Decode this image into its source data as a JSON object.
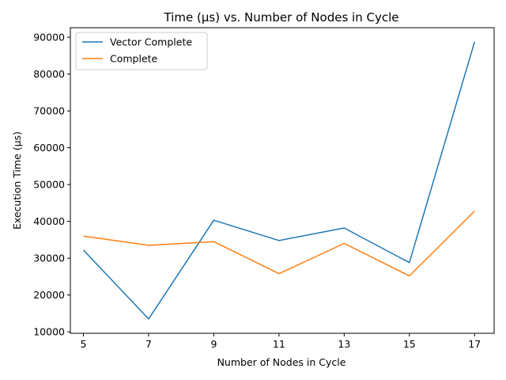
{
  "chart_data": {
    "type": "line",
    "title": "Time (µs) vs. Number of Nodes in Cycle",
    "xlabel": "Number of Nodes in Cycle",
    "ylabel": "Execution Time (µs)",
    "x": [
      5,
      7,
      9,
      11,
      13,
      15,
      17
    ],
    "xticks": [
      "5",
      "7",
      "9",
      "11",
      "13",
      "15",
      "17"
    ],
    "yticks": [
      "10000",
      "20000",
      "30000",
      "40000",
      "50000",
      "60000",
      "70000",
      "80000",
      "90000"
    ],
    "ylim": [
      9600,
      92600
    ],
    "xlim": [
      4.6,
      17.6
    ],
    "grid": false,
    "legend_position": "top-left",
    "series": [
      {
        "name": "Vector Complete",
        "color": "#1f77b4",
        "values": [
          32200,
          13500,
          40300,
          34800,
          38200,
          28800,
          88800
        ]
      },
      {
        "name": "Complete",
        "color": "#ff7f0e",
        "values": [
          36000,
          33500,
          34500,
          25800,
          34000,
          25200,
          42800
        ]
      }
    ]
  }
}
